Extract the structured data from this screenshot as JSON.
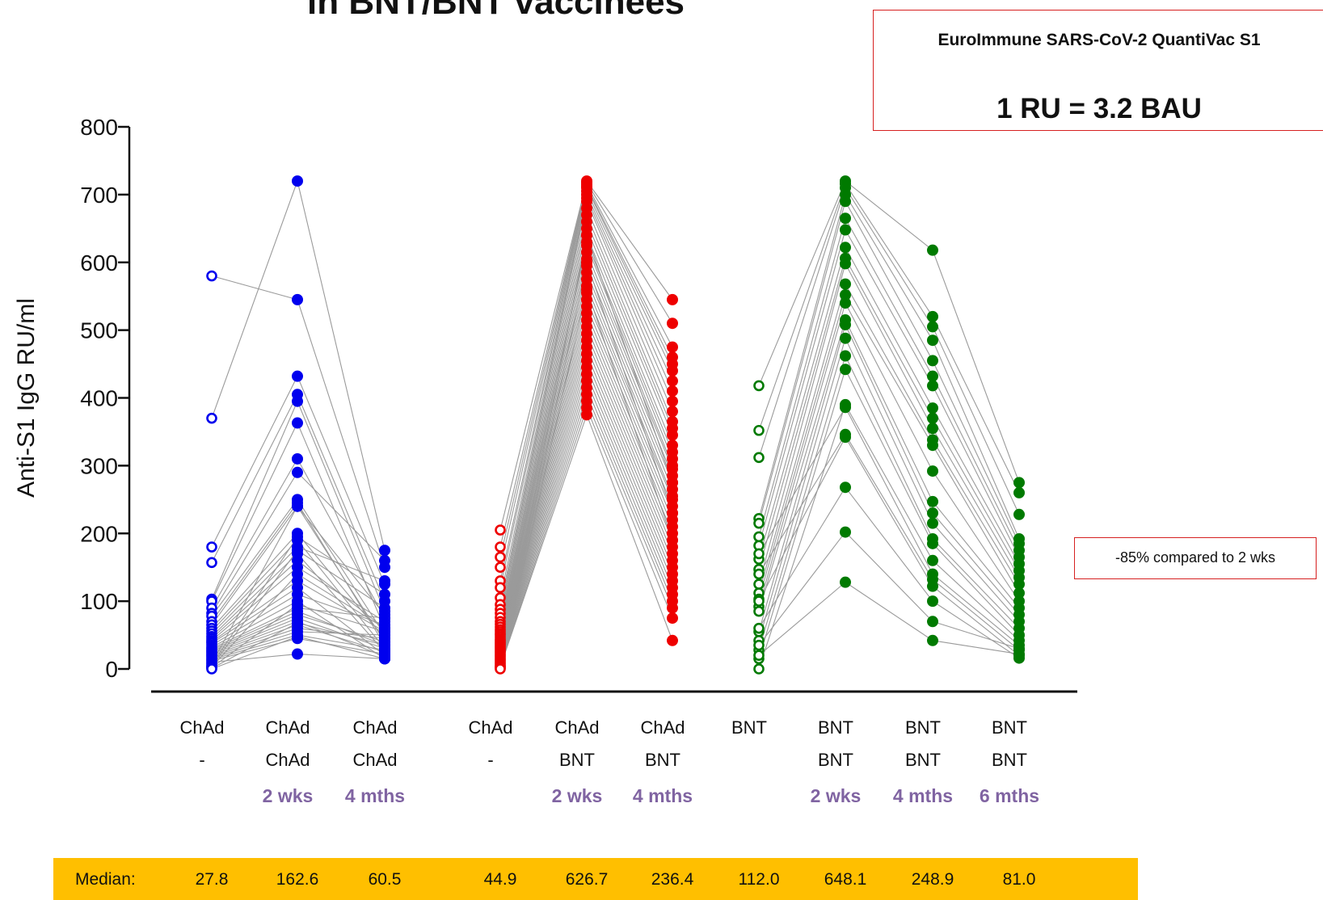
{
  "title_fragment": "in BNT/BNT vaccinees",
  "assay_box": {
    "line1": "EuroImmune SARS-CoV-2 QuantiVac S1",
    "line2": "1 RU = 3.2 BAU"
  },
  "annotation_box": {
    "text": "-85% compared to 2 wks"
  },
  "colors": {
    "chad_chad": "#0000ee",
    "chad_bnt": "#ee0000",
    "bnt_bnt": "#007a00",
    "pair_lines": "#9a9a9a",
    "median_bar": "#ffbf00",
    "timepoint_text": "#8064a2"
  },
  "median": {
    "label": "Median:",
    "values": [
      "27.8",
      "162.6",
      "60.5",
      "44.9",
      "626.7",
      "236.4",
      "112.0",
      "648.1",
      "248.9",
      "81.0"
    ]
  },
  "chart_data": {
    "type": "scatter",
    "title": "",
    "ylabel": "Anti-S1 IgG RU/ml",
    "xlabel": "",
    "ylim": [
      0,
      800
    ],
    "yticks": [
      0,
      100,
      200,
      300,
      400,
      500,
      600,
      700,
      800
    ],
    "grid": false,
    "categories": [
      {
        "line1": "ChAd",
        "line2": "-",
        "time": "",
        "group": "chad_chad",
        "filled": false
      },
      {
        "line1": "ChAd",
        "line2": "ChAd",
        "time": "2 wks",
        "group": "chad_chad",
        "filled": true
      },
      {
        "line1": "ChAd",
        "line2": "ChAd",
        "time": "4 mths",
        "group": "chad_chad",
        "filled": true
      },
      {
        "line1": "ChAd",
        "line2": "-",
        "time": "",
        "group": "chad_bnt",
        "filled": false
      },
      {
        "line1": "ChAd",
        "line2": "BNT",
        "time": "2 wks",
        "group": "chad_bnt",
        "filled": true
      },
      {
        "line1": "ChAd",
        "line2": "BNT",
        "time": "4 mths",
        "group": "chad_bnt",
        "filled": true
      },
      {
        "line1": "BNT",
        "line2": "",
        "time": "",
        "group": "bnt_bnt",
        "filled": false
      },
      {
        "line1": "BNT",
        "line2": "BNT",
        "time": "2 wks",
        "group": "bnt_bnt",
        "filled": true
      },
      {
        "line1": "BNT",
        "line2": "BNT",
        "time": "4 mths",
        "group": "bnt_bnt",
        "filled": true
      },
      {
        "line1": "BNT",
        "line2": "BNT",
        "time": "6 mths",
        "group": "bnt_bnt",
        "filled": true
      }
    ],
    "series": [
      {
        "group": "chad_chad",
        "columns": [
          1,
          2,
          3
        ],
        "paired_values": [
          [
            580,
            545,
            150
          ],
          [
            370,
            720,
            175
          ],
          [
            180,
            432,
            125
          ],
          [
            157,
            405,
            100
          ],
          [
            103,
            395,
            85
          ],
          [
            100,
            363,
            60
          ],
          [
            90,
            310,
            75
          ],
          [
            82,
            290,
            160
          ],
          [
            78,
            250,
            50
          ],
          [
            70,
            245,
            35
          ],
          [
            65,
            240,
            40
          ],
          [
            60,
            200,
            45
          ],
          [
            56,
            190,
            30
          ],
          [
            52,
            180,
            130
          ],
          [
            48,
            170,
            25
          ],
          [
            45,
            160,
            60
          ],
          [
            42,
            150,
            70
          ],
          [
            40,
            130,
            55
          ],
          [
            38,
            120,
            20
          ],
          [
            35,
            110,
            65
          ],
          [
            32,
            100,
            15
          ],
          [
            30,
            90,
            75
          ],
          [
            28,
            85,
            35
          ],
          [
            26,
            80,
            40
          ],
          [
            24,
            75,
            30
          ],
          [
            22,
            70,
            18
          ],
          [
            20,
            65,
            25
          ],
          [
            18,
            60,
            45
          ],
          [
            16,
            55,
            50
          ],
          [
            14,
            50,
            28
          ],
          [
            12,
            45,
            22
          ],
          [
            10,
            22,
            15
          ],
          [
            8,
            240,
            80
          ],
          [
            6,
            195,
            110
          ],
          [
            4,
            175,
            90
          ],
          [
            3,
            140,
            60
          ],
          [
            2,
            95,
            55
          ],
          [
            1,
            68,
            35
          ],
          [
            0,
            48,
            15
          ]
        ]
      },
      {
        "group": "chad_bnt",
        "columns": [
          4,
          5,
          6
        ],
        "paired_values": [
          [
            205,
            720,
            545
          ],
          [
            180,
            718,
            510
          ],
          [
            165,
            715,
            475
          ],
          [
            150,
            712,
            460
          ],
          [
            130,
            710,
            450
          ],
          [
            120,
            705,
            440
          ],
          [
            105,
            700,
            425
          ],
          [
            95,
            695,
            410
          ],
          [
            88,
            690,
            395
          ],
          [
            82,
            680,
            380
          ],
          [
            76,
            670,
            365
          ],
          [
            70,
            660,
            355
          ],
          [
            66,
            650,
            345
          ],
          [
            62,
            640,
            330
          ],
          [
            58,
            630,
            320
          ],
          [
            55,
            625,
            310
          ],
          [
            52,
            615,
            300
          ],
          [
            50,
            605,
            295
          ],
          [
            47,
            595,
            285
          ],
          [
            44,
            585,
            275
          ],
          [
            42,
            575,
            265
          ],
          [
            40,
            565,
            255
          ],
          [
            38,
            555,
            250
          ],
          [
            36,
            545,
            240
          ],
          [
            34,
            535,
            230
          ],
          [
            32,
            525,
            220
          ],
          [
            30,
            515,
            210
          ],
          [
            28,
            505,
            200
          ],
          [
            26,
            495,
            190
          ],
          [
            24,
            485,
            180
          ],
          [
            22,
            475,
            170
          ],
          [
            20,
            465,
            160
          ],
          [
            18,
            455,
            150
          ],
          [
            16,
            445,
            140
          ],
          [
            14,
            435,
            130
          ],
          [
            12,
            425,
            120
          ],
          [
            10,
            415,
            110
          ],
          [
            8,
            405,
            100
          ],
          [
            6,
            395,
            90
          ],
          [
            4,
            385,
            75
          ],
          [
            3,
            375,
            42
          ],
          [
            2,
            640,
            275
          ],
          [
            1,
            600,
            230
          ],
          [
            0,
            560,
            190
          ]
        ]
      },
      {
        "group": "bnt_bnt",
        "columns": [
          7,
          8,
          9,
          10
        ],
        "paired_values": [
          [
            418,
            720,
            618,
            275
          ],
          [
            352,
            716,
            520,
            260
          ],
          [
            312,
            710,
            505,
            228
          ],
          [
            222,
            700,
            485,
            192
          ],
          [
            215,
            690,
            455,
            185
          ],
          [
            195,
            665,
            432,
            175
          ],
          [
            182,
            648,
            418,
            165
          ],
          [
            162,
            622,
            385,
            155
          ],
          [
            147,
            606,
            370,
            145
          ],
          [
            125,
            598,
            355,
            135
          ],
          [
            112,
            568,
            338,
            125
          ],
          [
            103,
            552,
            330,
            112
          ],
          [
            92,
            540,
            292,
            100
          ],
          [
            85,
            515,
            247,
            90
          ],
          [
            55,
            508,
            230,
            80
          ],
          [
            42,
            488,
            215,
            70
          ],
          [
            28,
            462,
            192,
            60
          ],
          [
            15,
            442,
            185,
            50
          ],
          [
            0,
            390,
            160,
            42
          ],
          [
            170,
            386,
            140,
            35
          ],
          [
            140,
            346,
            132,
            28
          ],
          [
            100,
            342,
            122,
            20
          ],
          [
            60,
            268,
            100,
            16
          ],
          [
            35,
            202,
            70,
            30
          ],
          [
            20,
            128,
            42,
            22
          ]
        ]
      }
    ]
  }
}
